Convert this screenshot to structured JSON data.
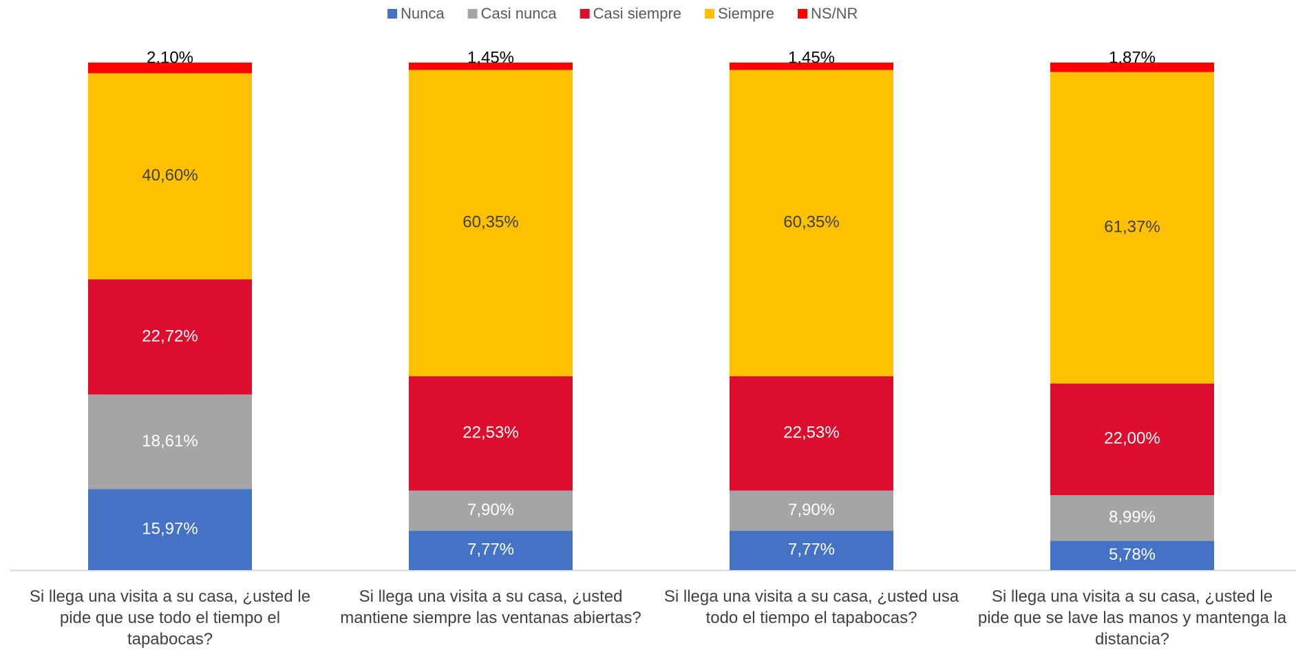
{
  "chart_data": {
    "type": "stacked_bar",
    "categories": [
      "Si llega una visita a su casa, ¿usted le pide que use todo el tiempo el tapabocas?",
      "Si llega una visita a su casa, ¿usted mantiene siempre las ventanas abiertas?",
      "Si llega una visita a su casa, ¿usted usa todo el tiempo el tapabocas?",
      "Si llega una visita a su casa, ¿usted le pide que se lave las manos y mantenga la distancia?"
    ],
    "ylim": [
      0,
      100
    ],
    "legend": "top",
    "series": [
      {
        "name": "Nunca",
        "color": "#4472c4",
        "values": [
          15.97,
          7.77,
          7.77,
          5.78
        ],
        "value_labels": [
          "15,97%",
          "7,77%",
          "7,77%",
          "5,78%"
        ]
      },
      {
        "name": "Casi nunca",
        "color": "#a5a5a5",
        "values": [
          18.61,
          7.9,
          7.9,
          8.99
        ],
        "value_labels": [
          "18,61%",
          "7,90%",
          "7,90%",
          "8,99%"
        ]
      },
      {
        "name": "Casi siempre",
        "color": "#dc0d2d",
        "values": [
          22.72,
          22.53,
          22.53,
          22.0
        ],
        "value_labels": [
          "22,72%",
          "22,53%",
          "22,53%",
          "22,00%"
        ]
      },
      {
        "name": "Siempre",
        "color": "#ffc000",
        "values": [
          40.6,
          60.35,
          60.35,
          61.37
        ],
        "value_labels": [
          "40,60%",
          "60,35%",
          "60,35%",
          "61,37%"
        ]
      },
      {
        "name": "NS/NR",
        "color": "#ff0000",
        "values": [
          2.1,
          1.45,
          1.45,
          1.87
        ],
        "value_labels": [
          "2,10%",
          "1,45%",
          "1,45%",
          "1,87%"
        ]
      }
    ]
  }
}
